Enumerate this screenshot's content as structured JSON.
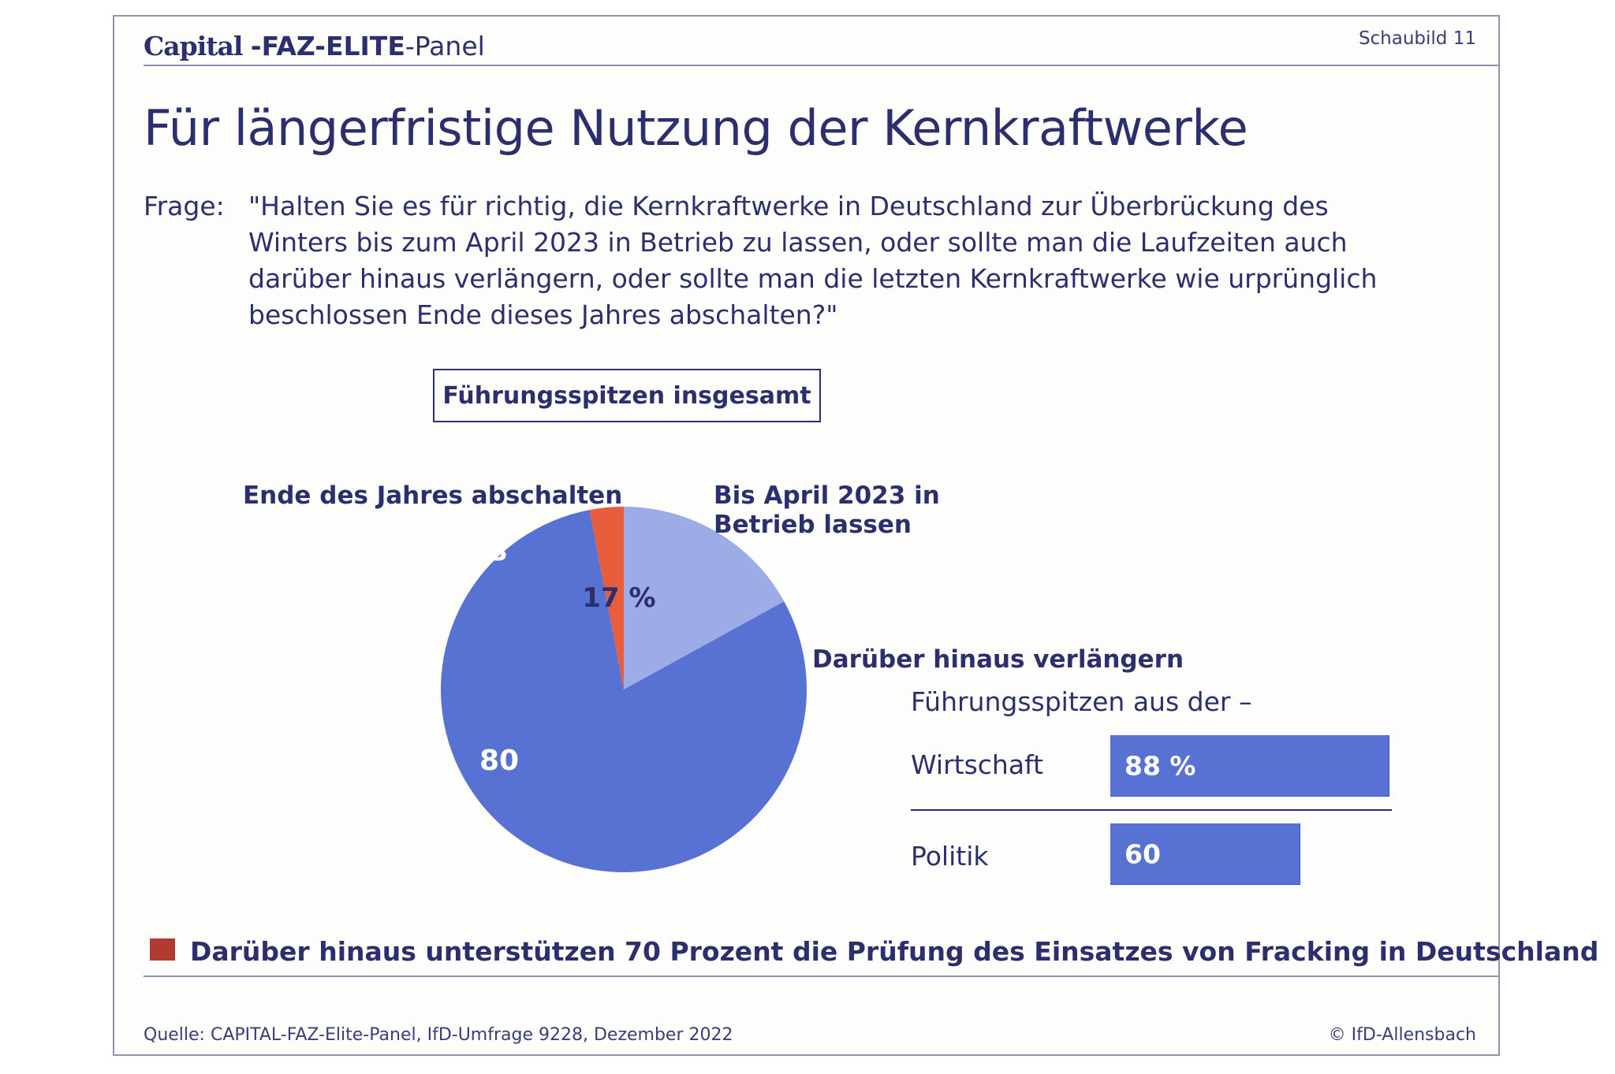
{
  "header": {
    "brand_capital": "Capital",
    "brand_faz_elite": "-FAZ-ELITE",
    "brand_panel": "-Panel",
    "figure_label": "Schaubild 11"
  },
  "title": "Für längerfristige Nutzung der Kernkraftwerke",
  "question": {
    "prefix": "Frage:",
    "lines": [
      "\"Halten Sie es für richtig, die Kernkraftwerke in Deutschland zur Überbrückung des",
      "Winters bis zum April 2023 in Betrieb zu lassen, oder sollte man die Laufzeiten auch",
      "darüber hinaus verlängern, oder sollte man die letzten Kernkraftwerke wie urprünglich",
      "beschlossen Ende dieses Jahres abschalten?\""
    ]
  },
  "colors": {
    "navy": "#2b2f6e",
    "slice_extend": "#5872d3",
    "slice_april": "#9dabe7",
    "slice_end": "#e85e3c",
    "note_square": "#b33a32"
  },
  "chart_data": [
    {
      "type": "pie",
      "title": "Führungsspitzen insgesamt",
      "slices": [
        {
          "label": "Ende des Jahres abschalten",
          "value": 3,
          "value_label": "3",
          "color": "#e85e3c"
        },
        {
          "label": "Bis April 2023 in Betrieb lassen",
          "value": 17,
          "value_label": "17 %",
          "color": "#9dabe7"
        },
        {
          "label": "Darüber hinaus verlängern",
          "value": 80,
          "value_label": "80",
          "color": "#5872d3"
        }
      ]
    },
    {
      "type": "bar",
      "orientation": "horizontal",
      "title": "Darüber hinaus verlängern",
      "subtitle": "Führungsspitzen aus der –",
      "categories": [
        "Wirtschaft",
        "Politik"
      ],
      "values": [
        88,
        60
      ],
      "value_labels": [
        "88 %",
        "60"
      ],
      "xlim": [
        0,
        100
      ],
      "color": "#5872d3"
    }
  ],
  "pie_labels": {
    "end": "Ende des Jahres abschalten",
    "april_line1": "Bis April 2023 in",
    "april_line2": "Betrieb lassen",
    "extend": "Darüber hinaus verlängern"
  },
  "note": "Darüber hinaus unterstützen 70 Prozent die Prüfung des Einsatzes von Fracking in Deutschland",
  "footer": {
    "source": "Quelle: CAPITAL-FAZ-Elite-Panel, IfD-Umfrage 9228, Dezember 2022",
    "copyright": "© IfD-Allensbach"
  }
}
